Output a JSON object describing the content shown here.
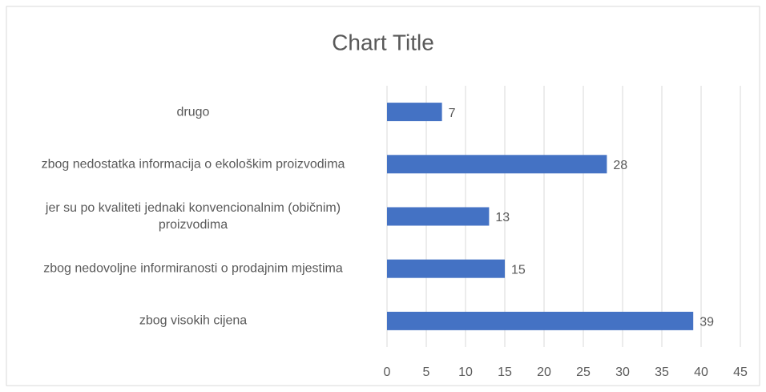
{
  "chart_data": {
    "type": "hbar",
    "title": "Chart Title",
    "categories": [
      "drugo",
      "zbog nedostatka informacija o ekološkim proizvodima",
      "jer su po kvaliteti jednaki konvencionalnim (običnim) proizvodima",
      "zbog nedovoljne informiranosti o prodajnim mjestima",
      "zbog visokih cijena"
    ],
    "values": [
      7,
      28,
      13,
      15,
      39
    ],
    "color": "#4472c4",
    "xlim": [
      0,
      45
    ],
    "xticks": [
      0,
      5,
      10,
      15,
      20,
      25,
      30,
      35,
      40,
      45
    ],
    "grid": true
  }
}
